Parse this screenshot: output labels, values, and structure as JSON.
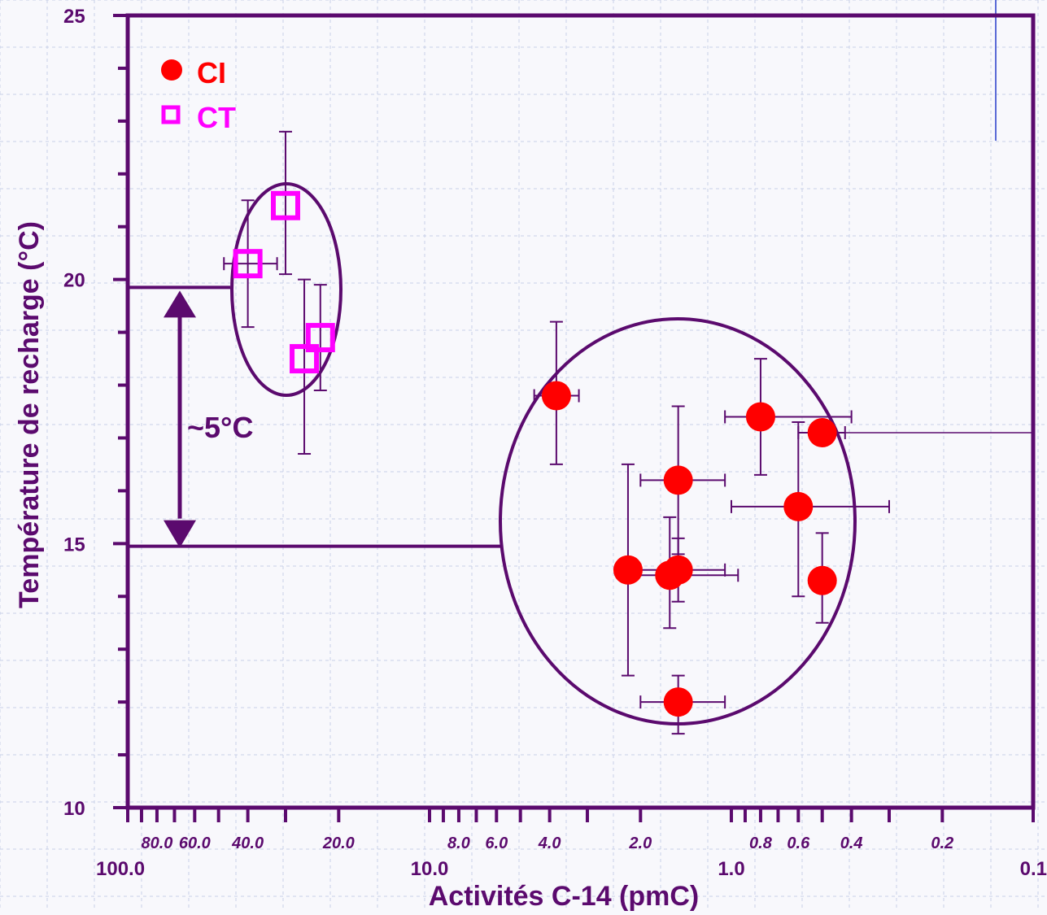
{
  "chart_data": {
    "type": "scatter",
    "title": "",
    "xlabel": "Activités   C-14 (pmC)",
    "ylabel": "Température de recharge (°C)",
    "x_scale": "log",
    "x_reversed": true,
    "xlim": [
      100.0,
      0.1
    ],
    "ylim": [
      10,
      25
    ],
    "grid": true,
    "legend_position": "top-left",
    "y_ticks": [
      {
        "value": 25,
        "label": "25"
      },
      {
        "value": 20,
        "label": "20"
      },
      {
        "value": 15,
        "label": "15"
      },
      {
        "value": 10,
        "label": "10"
      }
    ],
    "x_major_ticks": [
      {
        "value": 100.0,
        "label": "100.0"
      },
      {
        "value": 10.0,
        "label": "10.0"
      },
      {
        "value": 1.0,
        "label": "1.0"
      },
      {
        "value": 0.1,
        "label": "0.1"
      }
    ],
    "x_minor_ticks": [
      {
        "value": 80,
        "label": "80.0"
      },
      {
        "value": 60,
        "label": "60.0"
      },
      {
        "value": 40,
        "label": "40.0"
      },
      {
        "value": 20,
        "label": "20.0"
      },
      {
        "value": 8,
        "label": "8.0"
      },
      {
        "value": 6,
        "label": "6.0"
      },
      {
        "value": 4,
        "label": "4.0"
      },
      {
        "value": 2,
        "label": "2.0"
      },
      {
        "value": 0.8,
        "label": "0.8"
      },
      {
        "value": 0.6,
        "label": "0.6"
      },
      {
        "value": 0.4,
        "label": "0.4"
      },
      {
        "value": 0.2,
        "label": "0.2"
      }
    ],
    "x_tick_marks": [
      90,
      80,
      70,
      60,
      50,
      40,
      30,
      20,
      9,
      8,
      7,
      6,
      5,
      4,
      3,
      2,
      0.9,
      0.8,
      0.7,
      0.6,
      0.5,
      0.4,
      0.3,
      0.2
    ],
    "series": [
      {
        "name": "CI",
        "marker": "circle",
        "color": "#ff0000",
        "points": [
          {
            "x": 3.8,
            "y": 17.8,
            "xerr": [
              4.5,
              3.2
            ],
            "yerr": [
              16.5,
              19.2
            ]
          },
          {
            "x": 2.2,
            "y": 14.5,
            "xerr": [
              2.2,
              2.2
            ],
            "yerr": [
              12.5,
              16.5
            ]
          },
          {
            "x": 1.6,
            "y": 14.4,
            "xerr": [
              2.1,
              0.95
            ],
            "yerr": [
              13.4,
              15.5
            ]
          },
          {
            "x": 1.5,
            "y": 16.2,
            "xerr": [
              2.0,
              1.05
            ],
            "yerr": [
              14.8,
              17.6
            ]
          },
          {
            "x": 1.5,
            "y": 14.5,
            "xerr": [
              2.0,
              1.05
            ],
            "yerr": [
              13.9,
              15.1
            ]
          },
          {
            "x": 1.5,
            "y": 12.0,
            "xerr": [
              2.0,
              1.05
            ],
            "yerr": [
              11.4,
              12.5
            ]
          },
          {
            "x": 0.8,
            "y": 17.4,
            "xerr": [
              1.05,
              0.4
            ],
            "yerr": [
              16.3,
              18.5
            ]
          },
          {
            "x": 0.6,
            "y": 15.7,
            "xerr": [
              1.0,
              0.3
            ],
            "yerr": [
              14.0,
              17.3
            ]
          },
          {
            "x": 0.5,
            "y": 17.1,
            "xerr": [
              0.6,
              0.42
            ],
            "yerr": [
              17.1,
              17.1
            ]
          },
          {
            "x": 0.5,
            "y": 14.3,
            "xerr": [
              0.5,
              0.5
            ],
            "yerr": [
              13.5,
              15.2
            ]
          }
        ]
      },
      {
        "name": "CT",
        "marker": "square-open",
        "color": "#ff00ff",
        "points": [
          {
            "x": 40,
            "y": 20.3,
            "xerr": [
              48,
              32
            ],
            "yerr": [
              19.1,
              21.5
            ]
          },
          {
            "x": 30,
            "y": 21.4,
            "xerr": [
              30,
              30
            ],
            "yerr": [
              20.1,
              22.8
            ]
          },
          {
            "x": 26,
            "y": 18.5,
            "xerr": [
              26,
              26
            ],
            "yerr": [
              16.7,
              20.0
            ]
          },
          {
            "x": 23,
            "y": 18.9,
            "xerr": [
              23,
              23
            ],
            "yerr": [
              17.9,
              19.9
            ]
          }
        ]
      }
    ],
    "annotations": [
      {
        "text": "~5°C"
      }
    ]
  },
  "legend": {
    "items": [
      {
        "label": "CI",
        "color": "#ff0000"
      },
      {
        "label": "CT",
        "color": "#ff00ff"
      }
    ]
  },
  "colors": {
    "axis": "#5b0a6e",
    "grid": "#c8d0e8",
    "background": "#f8f8fc"
  }
}
